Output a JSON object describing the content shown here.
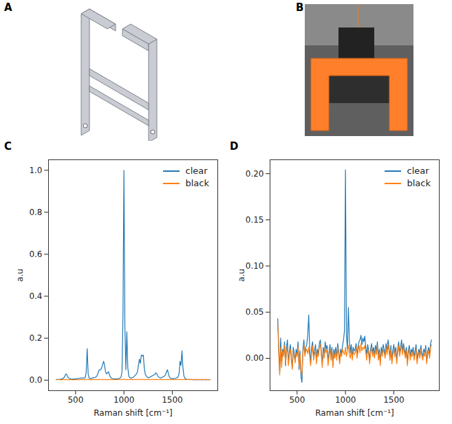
{
  "panel_labels": [
    "A",
    "B",
    "C",
    "D"
  ],
  "chart_data": [
    {
      "type": "line",
      "x_label": "Raman shift [cm⁻¹]",
      "y_label": "a.u",
      "xlim": [
        220,
        1970
      ],
      "xticks": [
        500,
        1000,
        1500
      ],
      "ylim": [
        -0.05,
        1.05
      ],
      "yticks": [
        {
          "value": 0,
          "label": "0.0"
        },
        {
          "value": 0.2,
          "label": "0.2"
        },
        {
          "value": 0.4,
          "label": "0.4"
        },
        {
          "value": 0.6,
          "label": "0.6"
        },
        {
          "value": 0.8,
          "label": "0.8"
        },
        {
          "value": 1.0,
          "label": "1.0"
        }
      ],
      "legend": "upper right",
      "x": [
        300,
        310,
        320,
        330,
        340,
        350,
        360,
        370,
        380,
        390,
        400,
        410,
        420,
        430,
        440,
        450,
        460,
        470,
        480,
        490,
        500,
        510,
        520,
        530,
        540,
        550,
        560,
        570,
        580,
        590,
        600,
        610,
        620,
        630,
        640,
        650,
        660,
        670,
        680,
        690,
        700,
        710,
        720,
        730,
        740,
        750,
        760,
        770,
        780,
        790,
        800,
        810,
        820,
        830,
        840,
        850,
        860,
        870,
        880,
        890,
        900,
        910,
        920,
        930,
        940,
        950,
        960,
        970,
        980,
        990,
        1000,
        1010,
        1020,
        1030,
        1040,
        1050,
        1060,
        1070,
        1080,
        1090,
        1100,
        1110,
        1120,
        1130,
        1140,
        1150,
        1160,
        1170,
        1180,
        1190,
        1200,
        1210,
        1220,
        1230,
        1240,
        1250,
        1260,
        1270,
        1280,
        1290,
        1300,
        1310,
        1320,
        1330,
        1340,
        1350,
        1360,
        1370,
        1380,
        1390,
        1400,
        1410,
        1420,
        1430,
        1440,
        1450,
        1460,
        1470,
        1480,
        1490,
        1500,
        1510,
        1520,
        1530,
        1540,
        1550,
        1560,
        1570,
        1580,
        1590,
        1600,
        1610,
        1620,
        1630,
        1640,
        1650,
        1660,
        1670,
        1680,
        1690,
        1700,
        1710,
        1720,
        1730,
        1740,
        1750,
        1760,
        1770,
        1780,
        1790,
        1800,
        1810,
        1820,
        1830,
        1840,
        1850,
        1860,
        1870,
        1880,
        1890
      ],
      "series": [
        {
          "name": "clear",
          "color": "#1f77b4",
          "values": [
            0.002,
            0.003,
            0.003,
            0.004,
            0.004,
            0.005,
            0.006,
            0.008,
            0.012,
            0.02,
            0.03,
            0.025,
            0.015,
            0.01,
            0.008,
            0.006,
            0.005,
            0.005,
            0.005,
            0.006,
            0.006,
            0.007,
            0.008,
            0.008,
            0.009,
            0.01,
            0.01,
            0.01,
            0.01,
            0.01,
            0.012,
            0.04,
            0.15,
            0.03,
            0.01,
            0.008,
            0.008,
            0.01,
            0.012,
            0.012,
            0.013,
            0.015,
            0.02,
            0.03,
            0.045,
            0.05,
            0.05,
            0.06,
            0.075,
            0.09,
            0.07,
            0.04,
            0.03,
            0.035,
            0.04,
            0.025,
            0.015,
            0.01,
            0.008,
            0.007,
            0.006,
            0.006,
            0.006,
            0.006,
            0.007,
            0.008,
            0.01,
            0.015,
            0.04,
            0.3,
            1.0,
            0.25,
            0.05,
            0.23,
            0.06,
            0.02,
            0.012,
            0.01,
            0.01,
            0.012,
            0.015,
            0.02,
            0.025,
            0.03,
            0.04,
            0.07,
            0.1,
            0.08,
            0.12,
            0.115,
            0.12,
            0.06,
            0.03,
            0.02,
            0.015,
            0.012,
            0.012,
            0.015,
            0.018,
            0.02,
            0.022,
            0.025,
            0.028,
            0.035,
            0.03,
            0.02,
            0.015,
            0.012,
            0.01,
            0.012,
            0.015,
            0.018,
            0.02,
            0.025,
            0.04,
            0.05,
            0.03,
            0.015,
            0.01,
            0.008,
            0.008,
            0.008,
            0.008,
            0.009,
            0.01,
            0.012,
            0.015,
            0.03,
            0.09,
            0.07,
            0.14,
            0.06,
            0.02,
            0.01,
            0.006,
            0.004,
            0.003,
            0.003,
            0.003,
            0.003,
            0.003,
            0.002,
            0.002,
            0.003,
            0.002,
            0.002,
            0.003,
            0.002,
            0.002,
            0.002,
            0.002,
            0.003,
            0.002,
            0.002,
            0.002,
            0.003,
            0.002,
            0.002,
            0.002,
            0.002
          ]
        },
        {
          "name": "black",
          "color": "#ff7f0e",
          "values": [
            0.004,
            0.003,
            0.003,
            0.003,
            0.002,
            0.002,
            0.002,
            0.003,
            0.003,
            0.003,
            0.003,
            0.003,
            0.002,
            0.002,
            0.002,
            0.003,
            0.003,
            0.002,
            0.002,
            0.002,
            0.003,
            0.003,
            0.003,
            0.002,
            0.002,
            0.003,
            0.003,
            0.003,
            0.003,
            0.002,
            0.003,
            0.003,
            0.004,
            0.003,
            0.003,
            0.003,
            0.002,
            0.003,
            0.003,
            0.003,
            0.003,
            0.003,
            0.003,
            0.003,
            0.003,
            0.004,
            0.003,
            0.003,
            0.003,
            0.003,
            0.003,
            0.003,
            0.003,
            0.002,
            0.003,
            0.003,
            0.003,
            0.003,
            0.002,
            0.003,
            0.003,
            0.003,
            0.003,
            0.003,
            0.003,
            0.003,
            0.003,
            0.003,
            0.003,
            0.004,
            0.005,
            0.004,
            0.003,
            0.003,
            0.003,
            0.003,
            0.003,
            0.003,
            0.003,
            0.003,
            0.003,
            0.003,
            0.003,
            0.003,
            0.003,
            0.003,
            0.004,
            0.003,
            0.003,
            0.003,
            0.003,
            0.003,
            0.003,
            0.003,
            0.003,
            0.003,
            0.003,
            0.003,
            0.003,
            0.003,
            0.003,
            0.003,
            0.003,
            0.003,
            0.003,
            0.003,
            0.003,
            0.003,
            0.003,
            0.003,
            0.003,
            0.003,
            0.003,
            0.003,
            0.003,
            0.003,
            0.003,
            0.003,
            0.003,
            0.003,
            0.003,
            0.003,
            0.003,
            0.003,
            0.003,
            0.003,
            0.003,
            0.003,
            0.003,
            0.003,
            0.003,
            0.003,
            0.003,
            0.003,
            0.003,
            0.003,
            0.003,
            0.003,
            0.003,
            0.003,
            0.003,
            0.003,
            0.003,
            0.003,
            0.003,
            0.003,
            0.003,
            0.003,
            0.003,
            0.003,
            0.003,
            0.003,
            0.003,
            0.003,
            0.003,
            0.003,
            0.003,
            0.003,
            0.003,
            0.003
          ]
        }
      ]
    },
    {
      "type": "line",
      "x_label": "Raman shift [cm⁻¹]",
      "y_label": "a.u",
      "xlim": [
        220,
        1970
      ],
      "xticks": [
        500,
        1000,
        1500
      ],
      "ylim": [
        -0.035,
        0.215
      ],
      "yticks": [
        {
          "value": 0,
          "label": "0.00"
        },
        {
          "value": 0.05,
          "label": "0.05"
        },
        {
          "value": 0.1,
          "label": "0.10"
        },
        {
          "value": 0.15,
          "label": "0.15"
        },
        {
          "value": 0.2,
          "label": "0.20"
        }
      ],
      "legend": "upper right",
      "x": [
        300,
        310,
        320,
        330,
        340,
        350,
        360,
        370,
        380,
        390,
        400,
        410,
        420,
        430,
        440,
        450,
        460,
        470,
        480,
        490,
        500,
        510,
        520,
        530,
        540,
        550,
        560,
        570,
        580,
        590,
        600,
        610,
        620,
        630,
        640,
        650,
        660,
        670,
        680,
        690,
        700,
        710,
        720,
        730,
        740,
        750,
        760,
        770,
        780,
        790,
        800,
        810,
        820,
        830,
        840,
        850,
        860,
        870,
        880,
        890,
        900,
        910,
        920,
        930,
        940,
        950,
        960,
        970,
        980,
        990,
        1000,
        1010,
        1020,
        1030,
        1040,
        1050,
        1060,
        1070,
        1080,
        1090,
        1100,
        1110,
        1120,
        1130,
        1140,
        1150,
        1160,
        1170,
        1180,
        1190,
        1200,
        1210,
        1220,
        1230,
        1240,
        1250,
        1260,
        1270,
        1280,
        1290,
        1300,
        1310,
        1320,
        1330,
        1340,
        1350,
        1360,
        1370,
        1380,
        1390,
        1400,
        1410,
        1420,
        1430,
        1440,
        1450,
        1460,
        1470,
        1480,
        1490,
        1500,
        1510,
        1520,
        1530,
        1540,
        1550,
        1560,
        1570,
        1580,
        1590,
        1600,
        1610,
        1620,
        1630,
        1640,
        1650,
        1660,
        1670,
        1680,
        1690,
        1700,
        1710,
        1720,
        1730,
        1740,
        1750,
        1760,
        1770,
        1780,
        1790,
        1800,
        1810,
        1820,
        1830,
        1840,
        1850,
        1860,
        1870,
        1880,
        1890
      ],
      "series": [
        {
          "name": "clear",
          "color": "#1f77b4",
          "values": [
            0.043,
            0.012,
            -0.015,
            0.022,
            -0.004,
            0.01,
            0.005,
            0.018,
            -0.008,
            0.012,
            0.02,
            -0.005,
            0.008,
            0.015,
            0.002,
            -0.01,
            0.012,
            0.006,
            -0.003,
            0.01,
            0.004,
            0.018,
            -0.012,
            0.008,
            -0.02,
            -0.026,
            0.01,
            0.02,
            0.005,
            0.012,
            0.015,
            0.025,
            0.047,
            0.01,
            -0.005,
            0.012,
            0.018,
            0.002,
            0.008,
            0.015,
            -0.002,
            0.01,
            0.005,
            0.016,
            0.02,
            0.008,
            -0.006,
            0.012,
            0.003,
            0.018,
            0.01,
            0.014,
            -0.004,
            0.006,
            0.015,
            0.002,
            0.012,
            -0.008,
            0.01,
            0.004,
            0.012,
            0.002,
            0.016,
            0.008,
            -0.003,
            0.01,
            0.005,
            0.014,
            0.02,
            0.03,
            0.204,
            0.025,
            0.01,
            0.055,
            0.02,
            0.006,
            0.015,
            0.002,
            0.012,
            0.008,
            0.01,
            0.016,
            0.004,
            0.012,
            0.018,
            0.02,
            0.025,
            0.015,
            0.022,
            0.018,
            0.024,
            0.012,
            0.004,
            0.015,
            0.008,
            -0.002,
            0.01,
            0.016,
            0.006,
            0.012,
            0.004,
            0.014,
            0.008,
            0.018,
            0.002,
            0.01,
            -0.004,
            0.012,
            0.006,
            0.015,
            0.01,
            0.004,
            0.016,
            0.008,
            0.02,
            0.012,
            0.002,
            0.014,
            -0.003,
            0.009,
            0.015,
            0.005,
            0.012,
            -0.002,
            0.01,
            0.018,
            0.006,
            0.012,
            0.02,
            0.008,
            0.016,
            0.01,
            0.004,
            0.012,
            -0.004,
            0.008,
            0.014,
            0.002,
            0.01,
            0.006,
            0.012,
            0.002,
            0.008,
            0.015,
            -0.002,
            0.006,
            0.01,
            0.004,
            0.014,
            0.006,
            0.002,
            0.01,
            0.006,
            0.014,
            -0.003,
            0.008,
            0.012,
            0.004,
            0.016,
            0.02
          ]
        },
        {
          "name": "black",
          "color": "#ff7f0e",
          "values": [
            0.038,
            0.005,
            -0.018,
            0.012,
            -0.01,
            0.008,
            0.002,
            0.014,
            -0.006,
            0.006,
            0.012,
            -0.008,
            0.004,
            0.01,
            -0.002,
            -0.012,
            0.008,
            0.002,
            -0.005,
            0.006,
            0.002,
            0.012,
            -0.008,
            0.004,
            -0.014,
            -0.018,
            0.006,
            0.015,
            0.002,
            0.008,
            0.01,
            0.005,
            0.012,
            0.002,
            -0.008,
            0.006,
            0.014,
            -0.002,
            0.004,
            0.01,
            -0.006,
            0.006,
            0.002,
            0.012,
            0.015,
            0.004,
            -0.01,
            0.008,
            0,
            0.012,
            0.006,
            0.01,
            -0.008,
            0.002,
            0.01,
            -0.002,
            0.008,
            -0.01,
            0.006,
            0,
            0.008,
            -0.002,
            0.012,
            0.004,
            -0.006,
            0.006,
            0.002,
            0.01,
            0.006,
            0.004,
            0.012,
            0.002,
            0.008,
            0.014,
            0.004,
            0,
            0.01,
            -0.002,
            0.008,
            0.004,
            0.006,
            0.012,
            0,
            0.008,
            0.014,
            0.006,
            0.016,
            0.008,
            0.012,
            0.01,
            0.014,
            0.006,
            -0.002,
            0.01,
            0.004,
            -0.006,
            0.006,
            0.012,
            0.002,
            0.008,
            0,
            0.01,
            0.004,
            0.014,
            -0.002,
            0.006,
            -0.008,
            0.008,
            0.002,
            0.01,
            0.006,
            0,
            0.012,
            0.004,
            0.015,
            0.008,
            -0.002,
            0.01,
            -0.006,
            0.004,
            0.01,
            0.002,
            0.008,
            -0.006,
            0.006,
            0.014,
            0.002,
            0.008,
            0.015,
            0.004,
            0.012,
            0.006,
            0,
            0.008,
            -0.008,
            0.004,
            0.01,
            -0.002,
            0.006,
            0.002,
            0.008,
            -0.002,
            0.004,
            0.01,
            -0.006,
            0.002,
            0.006,
            0,
            0.01,
            0.002,
            -0.002,
            0.006,
            0.002,
            0.01,
            -0.006,
            0.004,
            0.008,
            0,
            0.012,
            0.015
          ]
        }
      ]
    }
  ]
}
